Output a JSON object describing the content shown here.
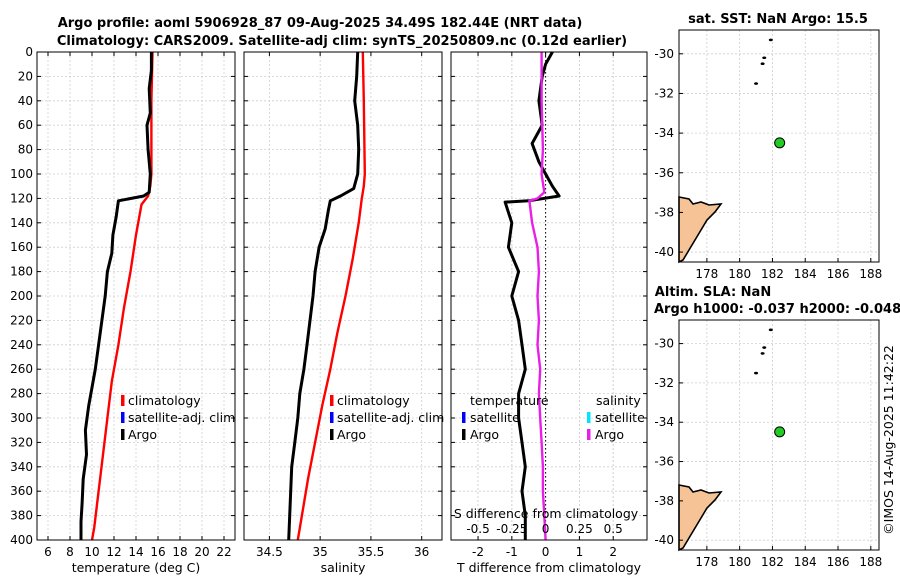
{
  "figure": {
    "title_line1": "Argo profile: aoml 5906928_87 09-Aug-2025 34.49S 182.44E (NRT data)",
    "title_line2": "Climatology: CARS2009. Satellite-adj clim: synTS_20250809.nc (0.12d earlier)",
    "credit": "©IMOS 14-Aug-2025 11:42:22"
  },
  "colors": {
    "climatology": "#ff0000",
    "satellite_adj": "#0000ff",
    "argo": "#000000",
    "argo_salinity_diff": "#e81fe8",
    "satellite_salinity": "#00e5ff",
    "land": "#f5c396",
    "float_marker": "#22cc22"
  },
  "chart_data": [
    {
      "id": "temperature",
      "type": "line",
      "xlabel": "temperature (deg C)",
      "xlim": [
        5,
        23
      ],
      "xticks": [
        6,
        8,
        10,
        12,
        14,
        16,
        18,
        20,
        22
      ],
      "ylim": [
        0,
        400
      ],
      "yticks": [
        0,
        20,
        40,
        60,
        80,
        100,
        120,
        140,
        160,
        180,
        200,
        220,
        240,
        260,
        280,
        300,
        320,
        340,
        360,
        380,
        400
      ],
      "y_reversed": true,
      "legend": [
        "climatology",
        "satellite-adj. clim",
        "Argo"
      ],
      "series": [
        {
          "name": "climatology",
          "color": "#ff0000",
          "points": [
            [
              15.5,
              0
            ],
            [
              15.4,
              40
            ],
            [
              15.4,
              100
            ],
            [
              15.3,
              110
            ],
            [
              15.1,
              118
            ],
            [
              14.5,
              125
            ],
            [
              14.0,
              150
            ],
            [
              13.5,
              180
            ],
            [
              12.9,
              210
            ],
            [
              12.4,
              240
            ],
            [
              11.8,
              270
            ],
            [
              11.4,
              300
            ],
            [
              11.0,
              330
            ],
            [
              10.6,
              360
            ],
            [
              10.2,
              390
            ],
            [
              10.0,
              400
            ]
          ]
        },
        {
          "name": "Argo",
          "color": "#000000",
          "points": [
            [
              15.4,
              0
            ],
            [
              15.4,
              15
            ],
            [
              15.2,
              30
            ],
            [
              15.3,
              50
            ],
            [
              15.0,
              60
            ],
            [
              15.1,
              80
            ],
            [
              15.3,
              100
            ],
            [
              15.2,
              115
            ],
            [
              14.7,
              118
            ],
            [
              12.4,
              122
            ],
            [
              12.2,
              135
            ],
            [
              11.9,
              150
            ],
            [
              11.8,
              165
            ],
            [
              11.4,
              180
            ],
            [
              11.2,
              200
            ],
            [
              10.9,
              220
            ],
            [
              10.6,
              240
            ],
            [
              10.3,
              260
            ],
            [
              10.0,
              275
            ],
            [
              9.7,
              290
            ],
            [
              9.4,
              310
            ],
            [
              9.5,
              330
            ],
            [
              9.2,
              350
            ],
            [
              9.1,
              370
            ],
            [
              9.0,
              385
            ],
            [
              9.0,
              400
            ]
          ]
        }
      ]
    },
    {
      "id": "salinity",
      "type": "line",
      "xlabel": "salinity",
      "xlim": [
        34.25,
        36.2
      ],
      "xticks": [
        34.5,
        35,
        35.5,
        36
      ],
      "xticklabels": [
        "34.5",
        "35",
        "35.5",
        "36"
      ],
      "ylim": [
        0,
        400
      ],
      "y_reversed": true,
      "legend": [
        "climatology",
        "satellite-adj. clim",
        "Argo"
      ],
      "series": [
        {
          "name": "climatology",
          "color": "#ff0000",
          "points": [
            [
              35.42,
              0
            ],
            [
              35.43,
              40
            ],
            [
              35.44,
              100
            ],
            [
              35.43,
              110
            ],
            [
              35.41,
              120
            ],
            [
              35.38,
              140
            ],
            [
              35.32,
              170
            ],
            [
              35.25,
              200
            ],
            [
              35.17,
              230
            ],
            [
              35.1,
              260
            ],
            [
              35.02,
              290
            ],
            [
              34.95,
              320
            ],
            [
              34.88,
              350
            ],
            [
              34.82,
              380
            ],
            [
              34.78,
              400
            ]
          ]
        },
        {
          "name": "Argo",
          "color": "#000000",
          "points": [
            [
              35.37,
              0
            ],
            [
              35.36,
              20
            ],
            [
              35.34,
              40
            ],
            [
              35.37,
              60
            ],
            [
              35.38,
              80
            ],
            [
              35.37,
              100
            ],
            [
              35.33,
              112
            ],
            [
              35.2,
              118
            ],
            [
              35.1,
              122
            ],
            [
              35.08,
              130
            ],
            [
              35.05,
              145
            ],
            [
              34.99,
              160
            ],
            [
              34.95,
              180
            ],
            [
              34.93,
              200
            ],
            [
              34.9,
              220
            ],
            [
              34.87,
              240
            ],
            [
              34.84,
              260
            ],
            [
              34.8,
              280
            ],
            [
              34.78,
              300
            ],
            [
              34.75,
              320
            ],
            [
              34.72,
              340
            ],
            [
              34.71,
              360
            ],
            [
              34.7,
              380
            ],
            [
              34.69,
              400
            ]
          ]
        }
      ]
    },
    {
      "id": "difference",
      "type": "line",
      "xlabel": "T difference from climatology",
      "x2label": "S difference from climatology",
      "xlim": [
        -2.8,
        3.0
      ],
      "xticks": [
        -2,
        -1,
        0,
        1,
        2
      ],
      "x2lim": [
        -0.7,
        0.75
      ],
      "x2ticks": [
        -0.5,
        -0.25,
        0,
        0.25,
        0.5
      ],
      "x2ticklabels": [
        "-0.5",
        "-0.25",
        "0",
        "0.25",
        "0.5"
      ],
      "ylim": [
        0,
        400
      ],
      "y_reversed": true,
      "legend_temperature_heading": "temperature",
      "legend_salinity_heading": "salinity",
      "legend_temperature": [
        "satellite",
        "Argo"
      ],
      "legend_salinity": [
        "satellite",
        "Argo"
      ],
      "series": [
        {
          "name": "T difference Argo",
          "color": "#000000",
          "axis": "x",
          "points": [
            [
              0.2,
              0
            ],
            [
              0.0,
              10
            ],
            [
              -0.1,
              20
            ],
            [
              -0.2,
              40
            ],
            [
              -0.1,
              60
            ],
            [
              -0.4,
              75
            ],
            [
              -0.2,
              90
            ],
            [
              0.0,
              100
            ],
            [
              0.2,
              110
            ],
            [
              0.4,
              118
            ],
            [
              -0.5,
              122
            ],
            [
              -1.2,
              123
            ],
            [
              -1.0,
              140
            ],
            [
              -1.1,
              160
            ],
            [
              -0.8,
              180
            ],
            [
              -1.0,
              200
            ],
            [
              -0.8,
              220
            ],
            [
              -0.7,
              240
            ],
            [
              -0.6,
              260
            ],
            [
              -0.8,
              280
            ],
            [
              -0.8,
              300
            ],
            [
              -0.7,
              320
            ],
            [
              -0.6,
              340
            ],
            [
              -0.7,
              360
            ],
            [
              -0.6,
              380
            ],
            [
              -0.6,
              400
            ]
          ]
        },
        {
          "name": "S difference Argo",
          "color": "#e81fe8",
          "axis": "x2",
          "points": [
            [
              -0.03,
              0
            ],
            [
              -0.03,
              40
            ],
            [
              -0.02,
              80
            ],
            [
              -0.03,
              100
            ],
            [
              -0.01,
              115
            ],
            [
              -0.06,
              120
            ],
            [
              -0.12,
              122
            ],
            [
              -0.1,
              140
            ],
            [
              -0.06,
              160
            ],
            [
              -0.05,
              180
            ],
            [
              -0.06,
              200
            ],
            [
              -0.05,
              220
            ],
            [
              -0.06,
              240
            ],
            [
              -0.04,
              260
            ],
            [
              -0.05,
              280
            ],
            [
              -0.04,
              300
            ],
            [
              -0.03,
              320
            ],
            [
              -0.02,
              340
            ],
            [
              -0.02,
              360
            ],
            [
              -0.01,
              380
            ],
            [
              0.0,
              400
            ]
          ]
        }
      ]
    },
    {
      "id": "map_sst",
      "type": "scatter",
      "title": "sat. SST: NaN Argo: 15.5",
      "xlim": [
        176.3,
        188.5
      ],
      "xticks": [
        178,
        180,
        182,
        184,
        186,
        188
      ],
      "ylim": [
        -40.5,
        -28.8
      ],
      "yticks": [
        -30,
        -32,
        -34,
        -36,
        -38,
        -40
      ],
      "float_position": [
        182.44,
        -34.49
      ],
      "islands": [
        [
          181.9,
          -29.3
        ],
        [
          181.5,
          -30.2
        ],
        [
          181.4,
          -30.5
        ],
        [
          181.0,
          -31.5
        ]
      ]
    },
    {
      "id": "map_sla",
      "type": "scatter",
      "title_line1": "Altim. SLA: NaN",
      "title_line2": "Argo h1000: -0.037 h2000: -0.048",
      "xlim": [
        176.3,
        188.5
      ],
      "xticks": [
        178,
        180,
        182,
        184,
        186,
        188
      ],
      "ylim": [
        -40.5,
        -28.8
      ],
      "yticks": [
        -30,
        -32,
        -34,
        -36,
        -38,
        -40
      ],
      "float_position": [
        182.44,
        -34.49
      ],
      "islands": [
        [
          181.9,
          -29.3
        ],
        [
          181.5,
          -30.2
        ],
        [
          181.4,
          -30.5
        ],
        [
          181.0,
          -31.5
        ]
      ]
    }
  ]
}
